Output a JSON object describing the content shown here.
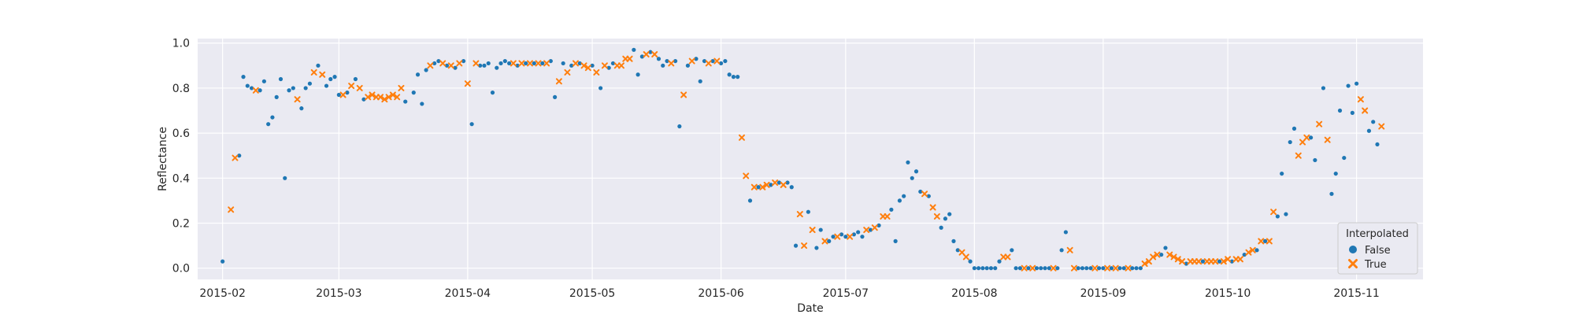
{
  "chart_data": {
    "type": "scatter",
    "xlabel": "Date",
    "ylabel": "Reflectance",
    "xlim": [
      "2015-01-26",
      "2015-11-17"
    ],
    "ylim": [
      -0.05,
      1.02
    ],
    "x_ticks": [
      "2015-02",
      "2015-03",
      "2015-04",
      "2015-05",
      "2015-06",
      "2015-07",
      "2015-08",
      "2015-09",
      "2015-10",
      "2015-11"
    ],
    "y_ticks": [
      "0.0",
      "0.2",
      "0.4",
      "0.6",
      "0.8",
      "1.0"
    ],
    "grid": true,
    "legend": {
      "title": "Interpolated",
      "placement": "lower-right"
    },
    "colors": {
      "False": "#1f77b4",
      "True": "#ff7f0e",
      "background": "#eaeaf2",
      "grid": "#ffffff"
    },
    "series": [
      {
        "name": "False",
        "marker": "circle",
        "points": [
          [
            "2015-02-01",
            0.03
          ],
          [
            "2015-02-05",
            0.5
          ],
          [
            "2015-02-06",
            0.85
          ],
          [
            "2015-02-07",
            0.81
          ],
          [
            "2015-02-08",
            0.8
          ],
          [
            "2015-02-10",
            0.79
          ],
          [
            "2015-02-11",
            0.83
          ],
          [
            "2015-02-12",
            0.64
          ],
          [
            "2015-02-13",
            0.67
          ],
          [
            "2015-02-14",
            0.76
          ],
          [
            "2015-02-15",
            0.84
          ],
          [
            "2015-02-16",
            0.4
          ],
          [
            "2015-02-17",
            0.79
          ],
          [
            "2015-02-18",
            0.8
          ],
          [
            "2015-02-20",
            0.71
          ],
          [
            "2015-02-21",
            0.8
          ],
          [
            "2015-02-22",
            0.82
          ],
          [
            "2015-02-24",
            0.9
          ],
          [
            "2015-02-26",
            0.81
          ],
          [
            "2015-02-27",
            0.84
          ],
          [
            "2015-02-28",
            0.85
          ],
          [
            "2015-03-01",
            0.77
          ],
          [
            "2015-03-03",
            0.78
          ],
          [
            "2015-03-05",
            0.84
          ],
          [
            "2015-03-07",
            0.75
          ],
          [
            "2015-03-17",
            0.74
          ],
          [
            "2015-03-19",
            0.78
          ],
          [
            "2015-03-20",
            0.86
          ],
          [
            "2015-03-21",
            0.73
          ],
          [
            "2015-03-22",
            0.88
          ],
          [
            "2015-03-24",
            0.91
          ],
          [
            "2015-03-25",
            0.92
          ],
          [
            "2015-03-27",
            0.9
          ],
          [
            "2015-03-29",
            0.89
          ],
          [
            "2015-03-31",
            0.92
          ],
          [
            "2015-04-02",
            0.64
          ],
          [
            "2015-04-04",
            0.9
          ],
          [
            "2015-04-05",
            0.9
          ],
          [
            "2015-04-06",
            0.91
          ],
          [
            "2015-04-07",
            0.78
          ],
          [
            "2015-04-08",
            0.89
          ],
          [
            "2015-04-09",
            0.91
          ],
          [
            "2015-04-10",
            0.92
          ],
          [
            "2015-04-11",
            0.91
          ],
          [
            "2015-04-13",
            0.9
          ],
          [
            "2015-04-15",
            0.91
          ],
          [
            "2015-04-17",
            0.91
          ],
          [
            "2015-04-19",
            0.91
          ],
          [
            "2015-04-21",
            0.92
          ],
          [
            "2015-04-22",
            0.76
          ],
          [
            "2015-04-24",
            0.91
          ],
          [
            "2015-04-26",
            0.9
          ],
          [
            "2015-04-28",
            0.91
          ],
          [
            "2015-05-01",
            0.9
          ],
          [
            "2015-05-03",
            0.8
          ],
          [
            "2015-05-05",
            0.89
          ],
          [
            "2015-05-06",
            0.91
          ],
          [
            "2015-05-11",
            0.97
          ],
          [
            "2015-05-12",
            0.86
          ],
          [
            "2015-05-13",
            0.94
          ],
          [
            "2015-05-15",
            0.96
          ],
          [
            "2015-05-17",
            0.93
          ],
          [
            "2015-05-18",
            0.9
          ],
          [
            "2015-05-19",
            0.92
          ],
          [
            "2015-05-21",
            0.92
          ],
          [
            "2015-05-22",
            0.63
          ],
          [
            "2015-05-24",
            0.9
          ],
          [
            "2015-05-26",
            0.93
          ],
          [
            "2015-05-27",
            0.83
          ],
          [
            "2015-05-28",
            0.92
          ],
          [
            "2015-05-30",
            0.92
          ],
          [
            "2015-06-01",
            0.91
          ],
          [
            "2015-06-02",
            0.92
          ],
          [
            "2015-06-03",
            0.86
          ],
          [
            "2015-06-04",
            0.85
          ],
          [
            "2015-06-05",
            0.85
          ],
          [
            "2015-06-08",
            0.3
          ],
          [
            "2015-06-10",
            0.36
          ],
          [
            "2015-06-13",
            0.37
          ],
          [
            "2015-06-15",
            0.38
          ],
          [
            "2015-06-17",
            0.38
          ],
          [
            "2015-06-18",
            0.36
          ],
          [
            "2015-06-19",
            0.1
          ],
          [
            "2015-06-22",
            0.25
          ],
          [
            "2015-06-24",
            0.09
          ],
          [
            "2015-06-25",
            0.17
          ],
          [
            "2015-06-27",
            0.12
          ],
          [
            "2015-06-28",
            0.14
          ],
          [
            "2015-06-30",
            0.15
          ],
          [
            "2015-07-01",
            0.14
          ],
          [
            "2015-07-03",
            0.15
          ],
          [
            "2015-07-04",
            0.16
          ],
          [
            "2015-07-05",
            0.14
          ],
          [
            "2015-07-07",
            0.17
          ],
          [
            "2015-07-09",
            0.19
          ],
          [
            "2015-07-12",
            0.26
          ],
          [
            "2015-07-13",
            0.12
          ],
          [
            "2015-07-14",
            0.3
          ],
          [
            "2015-07-15",
            0.32
          ],
          [
            "2015-07-16",
            0.47
          ],
          [
            "2015-07-17",
            0.4
          ],
          [
            "2015-07-18",
            0.43
          ],
          [
            "2015-07-19",
            0.34
          ],
          [
            "2015-07-21",
            0.32
          ],
          [
            "2015-07-24",
            0.18
          ],
          [
            "2015-07-25",
            0.22
          ],
          [
            "2015-07-26",
            0.24
          ],
          [
            "2015-07-27",
            0.12
          ],
          [
            "2015-07-28",
            0.08
          ],
          [
            "2015-07-31",
            0.03
          ],
          [
            "2015-08-01",
            0.0
          ],
          [
            "2015-08-02",
            0.0
          ],
          [
            "2015-08-03",
            0.0
          ],
          [
            "2015-08-04",
            0.0
          ],
          [
            "2015-08-05",
            0.0
          ],
          [
            "2015-08-06",
            0.0
          ],
          [
            "2015-08-07",
            0.03
          ],
          [
            "2015-08-10",
            0.08
          ],
          [
            "2015-08-11",
            0.0
          ],
          [
            "2015-08-12",
            0.0
          ],
          [
            "2015-08-14",
            0.0
          ],
          [
            "2015-08-16",
            0.0
          ],
          [
            "2015-08-17",
            0.0
          ],
          [
            "2015-08-18",
            0.0
          ],
          [
            "2015-08-19",
            0.0
          ],
          [
            "2015-08-21",
            0.0
          ],
          [
            "2015-08-22",
            0.08
          ],
          [
            "2015-08-23",
            0.16
          ],
          [
            "2015-08-26",
            0.0
          ],
          [
            "2015-08-27",
            0.0
          ],
          [
            "2015-08-28",
            0.0
          ],
          [
            "2015-08-29",
            0.0
          ],
          [
            "2015-08-31",
            0.0
          ],
          [
            "2015-09-01",
            0.0
          ],
          [
            "2015-09-03",
            0.0
          ],
          [
            "2015-09-05",
            0.0
          ],
          [
            "2015-09-06",
            0.0
          ],
          [
            "2015-09-08",
            0.0
          ],
          [
            "2015-09-09",
            0.0
          ],
          [
            "2015-09-10",
            0.0
          ],
          [
            "2015-09-15",
            0.06
          ],
          [
            "2015-09-16",
            0.09
          ],
          [
            "2015-09-21",
            0.02
          ],
          [
            "2015-09-25",
            0.03
          ],
          [
            "2015-09-29",
            0.03
          ],
          [
            "2015-10-02",
            0.03
          ],
          [
            "2015-10-05",
            0.06
          ],
          [
            "2015-10-08",
            0.08
          ],
          [
            "2015-10-10",
            0.12
          ],
          [
            "2015-10-13",
            0.23
          ],
          [
            "2015-10-14",
            0.42
          ],
          [
            "2015-10-15",
            0.24
          ],
          [
            "2015-10-16",
            0.56
          ],
          [
            "2015-10-17",
            0.62
          ],
          [
            "2015-10-21",
            0.58
          ],
          [
            "2015-10-22",
            0.48
          ],
          [
            "2015-10-24",
            0.8
          ],
          [
            "2015-10-26",
            0.33
          ],
          [
            "2015-10-27",
            0.42
          ],
          [
            "2015-10-28",
            0.7
          ],
          [
            "2015-10-29",
            0.49
          ],
          [
            "2015-10-30",
            0.81
          ],
          [
            "2015-10-31",
            0.69
          ],
          [
            "2015-11-01",
            0.82
          ],
          [
            "2015-11-04",
            0.61
          ],
          [
            "2015-11-05",
            0.65
          ],
          [
            "2015-11-06",
            0.55
          ]
        ]
      },
      {
        "name": "True",
        "marker": "x",
        "points": [
          [
            "2015-02-03",
            0.26
          ],
          [
            "2015-02-04",
            0.49
          ],
          [
            "2015-02-09",
            0.79
          ],
          [
            "2015-02-19",
            0.75
          ],
          [
            "2015-02-23",
            0.87
          ],
          [
            "2015-02-25",
            0.86
          ],
          [
            "2015-03-02",
            0.77
          ],
          [
            "2015-03-04",
            0.81
          ],
          [
            "2015-03-06",
            0.8
          ],
          [
            "2015-03-08",
            0.76
          ],
          [
            "2015-03-09",
            0.77
          ],
          [
            "2015-03-10",
            0.76
          ],
          [
            "2015-03-11",
            0.76
          ],
          [
            "2015-03-12",
            0.75
          ],
          [
            "2015-03-13",
            0.76
          ],
          [
            "2015-03-14",
            0.77
          ],
          [
            "2015-03-15",
            0.76
          ],
          [
            "2015-03-16",
            0.8
          ],
          [
            "2015-03-23",
            0.9
          ],
          [
            "2015-03-26",
            0.91
          ],
          [
            "2015-03-28",
            0.9
          ],
          [
            "2015-03-30",
            0.91
          ],
          [
            "2015-04-01",
            0.82
          ],
          [
            "2015-04-03",
            0.91
          ],
          [
            "2015-04-12",
            0.91
          ],
          [
            "2015-04-14",
            0.91
          ],
          [
            "2015-04-16",
            0.91
          ],
          [
            "2015-04-18",
            0.91
          ],
          [
            "2015-04-20",
            0.91
          ],
          [
            "2015-04-23",
            0.83
          ],
          [
            "2015-04-25",
            0.87
          ],
          [
            "2015-04-27",
            0.91
          ],
          [
            "2015-04-29",
            0.9
          ],
          [
            "2015-04-30",
            0.89
          ],
          [
            "2015-05-02",
            0.87
          ],
          [
            "2015-05-04",
            0.9
          ],
          [
            "2015-05-07",
            0.9
          ],
          [
            "2015-05-08",
            0.9
          ],
          [
            "2015-05-09",
            0.93
          ],
          [
            "2015-05-10",
            0.93
          ],
          [
            "2015-05-14",
            0.95
          ],
          [
            "2015-05-16",
            0.95
          ],
          [
            "2015-05-20",
            0.91
          ],
          [
            "2015-05-23",
            0.77
          ],
          [
            "2015-05-25",
            0.92
          ],
          [
            "2015-05-29",
            0.91
          ],
          [
            "2015-05-31",
            0.92
          ],
          [
            "2015-06-06",
            0.58
          ],
          [
            "2015-06-07",
            0.41
          ],
          [
            "2015-06-09",
            0.36
          ],
          [
            "2015-06-11",
            0.36
          ],
          [
            "2015-06-12",
            0.37
          ],
          [
            "2015-06-14",
            0.38
          ],
          [
            "2015-06-16",
            0.37
          ],
          [
            "2015-06-20",
            0.24
          ],
          [
            "2015-06-21",
            0.1
          ],
          [
            "2015-06-23",
            0.17
          ],
          [
            "2015-06-26",
            0.12
          ],
          [
            "2015-06-29",
            0.14
          ],
          [
            "2015-07-02",
            0.14
          ],
          [
            "2015-07-06",
            0.17
          ],
          [
            "2015-07-08",
            0.18
          ],
          [
            "2015-07-10",
            0.23
          ],
          [
            "2015-07-11",
            0.23
          ],
          [
            "2015-07-20",
            0.33
          ],
          [
            "2015-07-22",
            0.27
          ],
          [
            "2015-07-23",
            0.23
          ],
          [
            "2015-07-29",
            0.07
          ],
          [
            "2015-07-30",
            0.05
          ],
          [
            "2015-08-08",
            0.05
          ],
          [
            "2015-08-09",
            0.05
          ],
          [
            "2015-08-13",
            0.0
          ],
          [
            "2015-08-15",
            0.0
          ],
          [
            "2015-08-20",
            0.0
          ],
          [
            "2015-08-24",
            0.08
          ],
          [
            "2015-08-25",
            0.0
          ],
          [
            "2015-08-30",
            0.0
          ],
          [
            "2015-09-02",
            0.0
          ],
          [
            "2015-09-04",
            0.0
          ],
          [
            "2015-09-07",
            0.0
          ],
          [
            "2015-09-11",
            0.02
          ],
          [
            "2015-09-12",
            0.03
          ],
          [
            "2015-09-13",
            0.05
          ],
          [
            "2015-09-14",
            0.06
          ],
          [
            "2015-09-17",
            0.06
          ],
          [
            "2015-09-18",
            0.05
          ],
          [
            "2015-09-19",
            0.04
          ],
          [
            "2015-09-20",
            0.03
          ],
          [
            "2015-09-22",
            0.03
          ],
          [
            "2015-09-23",
            0.03
          ],
          [
            "2015-09-24",
            0.03
          ],
          [
            "2015-09-26",
            0.03
          ],
          [
            "2015-09-27",
            0.03
          ],
          [
            "2015-09-28",
            0.03
          ],
          [
            "2015-09-30",
            0.03
          ],
          [
            "2015-10-01",
            0.04
          ],
          [
            "2015-10-03",
            0.04
          ],
          [
            "2015-10-04",
            0.04
          ],
          [
            "2015-10-06",
            0.07
          ],
          [
            "2015-10-07",
            0.08
          ],
          [
            "2015-10-09",
            0.12
          ],
          [
            "2015-10-11",
            0.12
          ],
          [
            "2015-10-12",
            0.25
          ],
          [
            "2015-10-18",
            0.5
          ],
          [
            "2015-10-19",
            0.56
          ],
          [
            "2015-10-20",
            0.58
          ],
          [
            "2015-10-23",
            0.64
          ],
          [
            "2015-10-25",
            0.57
          ],
          [
            "2015-11-02",
            0.75
          ],
          [
            "2015-11-03",
            0.7
          ],
          [
            "2015-11-07",
            0.63
          ]
        ]
      }
    ]
  }
}
